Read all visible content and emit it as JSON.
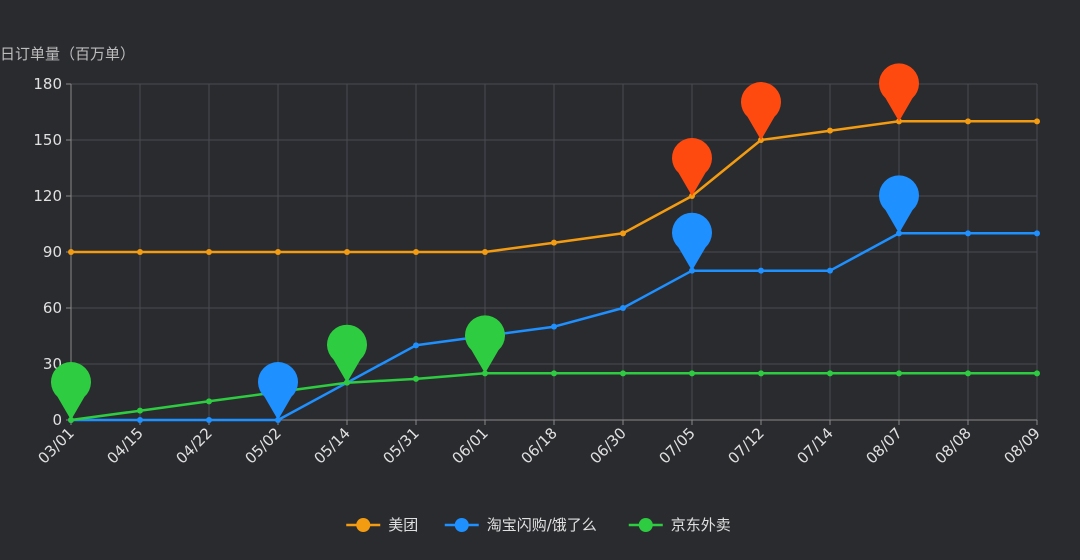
{
  "chart_data": {
    "type": "line",
    "title": "",
    "xlabel": "",
    "ylabel": "日订单量（百万单）",
    "categories": [
      "03/01",
      "04/15",
      "04/22",
      "05/02",
      "05/14",
      "05/31",
      "06/01",
      "06/18",
      "06/30",
      "07/05",
      "07/12",
      "07/14",
      "08/07",
      "08/08",
      "08/09"
    ],
    "ylim": [
      0,
      180
    ],
    "yticks": [
      0,
      30,
      60,
      90,
      120,
      150,
      180
    ],
    "grid": true,
    "legend_position": "bottom-center",
    "series": [
      {
        "name": "美团",
        "color": "#f39c12",
        "values": [
          90,
          90,
          90,
          90,
          90,
          90,
          90,
          95,
          100,
          120,
          150,
          155,
          160,
          160,
          160
        ],
        "markpoints": [
          {
            "category": "07/05",
            "value": 120,
            "color": "#ff4a0f"
          },
          {
            "category": "07/12",
            "value": 150,
            "color": "#ff4a0f"
          },
          {
            "category": "08/07",
            "value": 160,
            "color": "#ff4a0f"
          }
        ]
      },
      {
        "name": "淘宝闪购/饿了么",
        "color": "#1e90ff",
        "values": [
          0,
          0,
          0,
          0,
          20,
          40,
          45,
          50,
          60,
          80,
          80,
          80,
          100,
          100,
          100
        ],
        "markpoints": [
          {
            "category": "05/02",
            "value": 0,
            "color": "#1e90ff"
          },
          {
            "category": "07/05",
            "value": 80,
            "color": "#1e90ff"
          },
          {
            "category": "08/07",
            "value": 100,
            "color": "#1e90ff"
          }
        ]
      },
      {
        "name": "京东外卖",
        "color": "#2ecc40",
        "values": [
          0,
          5,
          10,
          15,
          20,
          22,
          25,
          25,
          25,
          25,
          25,
          25,
          25,
          25,
          25
        ],
        "markpoints": [
          {
            "category": "03/01",
            "value": 0,
            "color": "#2ecc40"
          },
          {
            "category": "05/14",
            "value": 20,
            "color": "#2ecc40"
          },
          {
            "category": "06/01",
            "value": 25,
            "color": "#2ecc40"
          }
        ]
      }
    ]
  }
}
